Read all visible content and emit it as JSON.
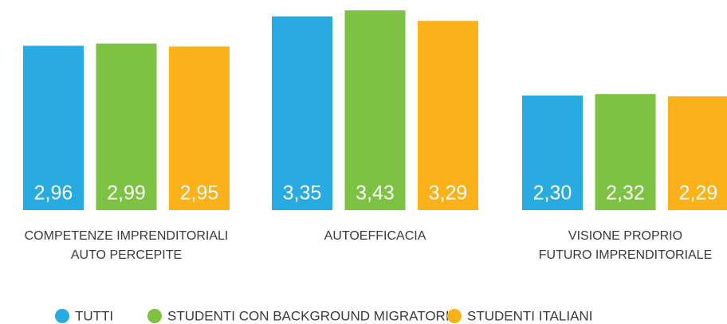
{
  "chart_data": {
    "type": "bar",
    "categories": [
      "COMPETENZE IMPRENDITORIALI\nAUTO PERCEPITE",
      "AUTOEFFICACIA",
      "VISIONE PROPRIO\nFUTURO IMPRENDITORIALE"
    ],
    "series": [
      {
        "name": "TUTTI",
        "color": "#29abe2",
        "values": [
          2.96,
          3.35,
          2.3
        ],
        "value_labels": [
          "2,96",
          "3,35",
          "2,30"
        ]
      },
      {
        "name": "STUDENTI CON BACKGROUND MIGRATORIO",
        "color": "#7dc242",
        "values": [
          2.99,
          3.43,
          2.32
        ],
        "value_labels": [
          "2,99",
          "3,43",
          "2,32"
        ]
      },
      {
        "name": "STUDENTI ITALIANI",
        "color": "#fbb21a",
        "values": [
          2.95,
          3.29,
          2.29
        ],
        "value_labels": [
          "2,95",
          "3,29",
          "2,29"
        ]
      }
    ],
    "ylim": [
      0.78,
      3.43
    ],
    "legend": "bottom"
  }
}
